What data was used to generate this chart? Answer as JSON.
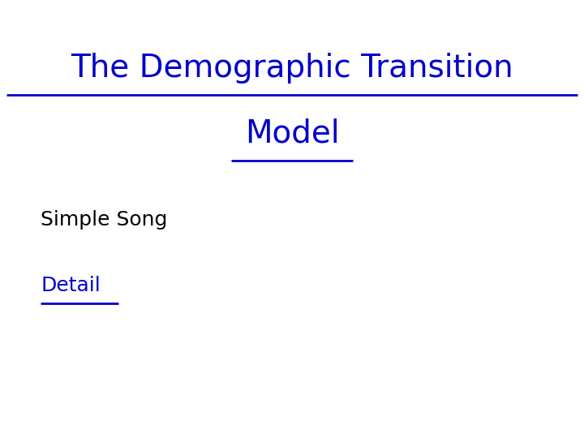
{
  "title_line1": "The Demographic Transition",
  "title_line2": "Model",
  "title_color": "#0000CC",
  "title_fontsize": 28,
  "subtitle_text": "Simple Song",
  "subtitle_color": "#000000",
  "subtitle_fontsize": 18,
  "detail_text": "Detail",
  "detail_color": "#0000CC",
  "detail_fontsize": 18,
  "background_color": "#ffffff",
  "fig_width": 7.2,
  "fig_height": 5.4,
  "dpi": 100
}
